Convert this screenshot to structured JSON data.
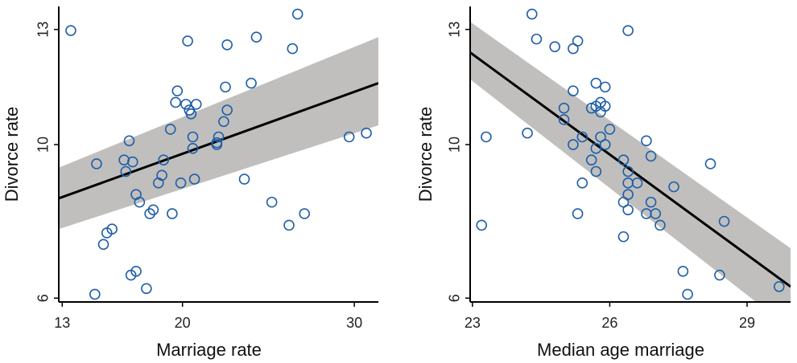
{
  "chart_data": [
    {
      "type": "scatter",
      "title": "",
      "xlabel": "Marriage rate",
      "ylabel": "Divorce rate",
      "xlim": [
        12.8,
        31.4
      ],
      "ylim": [
        5.9,
        13.6
      ],
      "xticks": [
        13,
        20,
        30
      ],
      "yticks": [
        6,
        10,
        13
      ],
      "grid": false,
      "point_color": "#1f5fa8",
      "band_color": "#c0bfbd",
      "fit": {
        "x": [
          12.8,
          31.4
        ],
        "y": [
          8.6,
          11.6
        ],
        "band_upper": [
          9.4,
          12.8
        ],
        "band_lower": [
          7.8,
          10.5
        ]
      },
      "points": [
        {
          "x": 13.5,
          "y": 12.97
        },
        {
          "x": 14.9,
          "y": 6.1
        },
        {
          "x": 15.0,
          "y": 9.5
        },
        {
          "x": 15.4,
          "y": 7.4
        },
        {
          "x": 15.6,
          "y": 7.7
        },
        {
          "x": 15.9,
          "y": 7.8
        },
        {
          "x": 16.6,
          "y": 9.6
        },
        {
          "x": 16.7,
          "y": 9.3
        },
        {
          "x": 16.9,
          "y": 10.1
        },
        {
          "x": 17.0,
          "y": 6.6
        },
        {
          "x": 17.1,
          "y": 9.55
        },
        {
          "x": 17.3,
          "y": 8.7
        },
        {
          "x": 17.3,
          "y": 6.7
        },
        {
          "x": 17.5,
          "y": 8.5
        },
        {
          "x": 17.9,
          "y": 6.25
        },
        {
          "x": 18.1,
          "y": 8.2
        },
        {
          "x": 18.3,
          "y": 8.3
        },
        {
          "x": 18.6,
          "y": 9.0
        },
        {
          "x": 18.8,
          "y": 9.2
        },
        {
          "x": 18.9,
          "y": 9.6
        },
        {
          "x": 19.3,
          "y": 10.4
        },
        {
          "x": 19.4,
          "y": 8.2
        },
        {
          "x": 19.6,
          "y": 11.1
        },
        {
          "x": 19.7,
          "y": 11.4
        },
        {
          "x": 19.9,
          "y": 9.0
        },
        {
          "x": 20.2,
          "y": 11.05
        },
        {
          "x": 20.3,
          "y": 12.7
        },
        {
          "x": 20.4,
          "y": 10.9
        },
        {
          "x": 20.5,
          "y": 10.8
        },
        {
          "x": 20.6,
          "y": 10.2
        },
        {
          "x": 20.6,
          "y": 9.9
        },
        {
          "x": 20.7,
          "y": 9.1
        },
        {
          "x": 20.8,
          "y": 11.05
        },
        {
          "x": 22.0,
          "y": 10.0
        },
        {
          "x": 22.0,
          "y": 10.05
        },
        {
          "x": 22.1,
          "y": 10.2
        },
        {
          "x": 22.4,
          "y": 10.6
        },
        {
          "x": 22.5,
          "y": 11.5
        },
        {
          "x": 22.6,
          "y": 10.9
        },
        {
          "x": 22.6,
          "y": 12.6
        },
        {
          "x": 23.6,
          "y": 9.1
        },
        {
          "x": 24.0,
          "y": 11.6
        },
        {
          "x": 24.3,
          "y": 12.8
        },
        {
          "x": 25.2,
          "y": 8.5
        },
        {
          "x": 26.2,
          "y": 7.9
        },
        {
          "x": 26.4,
          "y": 12.5
        },
        {
          "x": 26.7,
          "y": 13.4
        },
        {
          "x": 27.1,
          "y": 8.2
        },
        {
          "x": 29.7,
          "y": 10.2
        },
        {
          "x": 30.7,
          "y": 10.3
        }
      ]
    },
    {
      "type": "scatter",
      "title": "",
      "xlabel": "Median age marriage",
      "ylabel": "Divorce rate",
      "xlim": [
        22.95,
        29.95
      ],
      "ylim": [
        5.9,
        13.6
      ],
      "xticks": [
        23,
        26,
        29
      ],
      "yticks": [
        6,
        10,
        13
      ],
      "grid": false,
      "point_color": "#1f5fa8",
      "band_color": "#c0bfbd",
      "fit": {
        "x": [
          22.95,
          29.95
        ],
        "y": [
          12.4,
          6.3
        ],
        "band_upper": [
          13.2,
          7.3
        ],
        "band_lower": [
          11.7,
          5.2
        ]
      },
      "points": [
        {
          "x": 23.2,
          "y": 7.9
        },
        {
          "x": 23.3,
          "y": 10.2
        },
        {
          "x": 24.2,
          "y": 10.3
        },
        {
          "x": 24.3,
          "y": 13.4
        },
        {
          "x": 24.4,
          "y": 12.75
        },
        {
          "x": 24.8,
          "y": 12.55
        },
        {
          "x": 25.0,
          "y": 10.95
        },
        {
          "x": 25.0,
          "y": 10.65
        },
        {
          "x": 25.2,
          "y": 12.5
        },
        {
          "x": 25.2,
          "y": 11.4
        },
        {
          "x": 25.2,
          "y": 10.0
        },
        {
          "x": 25.3,
          "y": 12.7
        },
        {
          "x": 25.3,
          "y": 8.2
        },
        {
          "x": 25.4,
          "y": 10.2
        },
        {
          "x": 25.4,
          "y": 9.0
        },
        {
          "x": 25.6,
          "y": 10.95
        },
        {
          "x": 25.6,
          "y": 9.6
        },
        {
          "x": 25.7,
          "y": 11.6
        },
        {
          "x": 25.7,
          "y": 11.0
        },
        {
          "x": 25.7,
          "y": 9.3
        },
        {
          "x": 25.7,
          "y": 9.9
        },
        {
          "x": 25.8,
          "y": 11.1
        },
        {
          "x": 25.8,
          "y": 10.85
        },
        {
          "x": 25.8,
          "y": 10.2
        },
        {
          "x": 25.9,
          "y": 11.5
        },
        {
          "x": 25.9,
          "y": 11.0
        },
        {
          "x": 25.9,
          "y": 10.0
        },
        {
          "x": 26.0,
          "y": 10.4
        },
        {
          "x": 26.3,
          "y": 9.6
        },
        {
          "x": 26.3,
          "y": 8.5
        },
        {
          "x": 26.3,
          "y": 7.6
        },
        {
          "x": 26.4,
          "y": 12.97
        },
        {
          "x": 26.4,
          "y": 9.3
        },
        {
          "x": 26.4,
          "y": 9.0
        },
        {
          "x": 26.4,
          "y": 8.7
        },
        {
          "x": 26.4,
          "y": 8.3
        },
        {
          "x": 26.6,
          "y": 9.0
        },
        {
          "x": 26.8,
          "y": 10.1
        },
        {
          "x": 26.8,
          "y": 8.2
        },
        {
          "x": 26.9,
          "y": 9.7
        },
        {
          "x": 26.9,
          "y": 8.5
        },
        {
          "x": 27.0,
          "y": 8.2
        },
        {
          "x": 27.1,
          "y": 7.9
        },
        {
          "x": 27.4,
          "y": 8.9
        },
        {
          "x": 27.6,
          "y": 6.7
        },
        {
          "x": 27.7,
          "y": 6.1
        },
        {
          "x": 28.2,
          "y": 9.5
        },
        {
          "x": 28.4,
          "y": 6.6
        },
        {
          "x": 28.5,
          "y": 8.0
        },
        {
          "x": 29.7,
          "y": 6.3
        }
      ]
    }
  ]
}
